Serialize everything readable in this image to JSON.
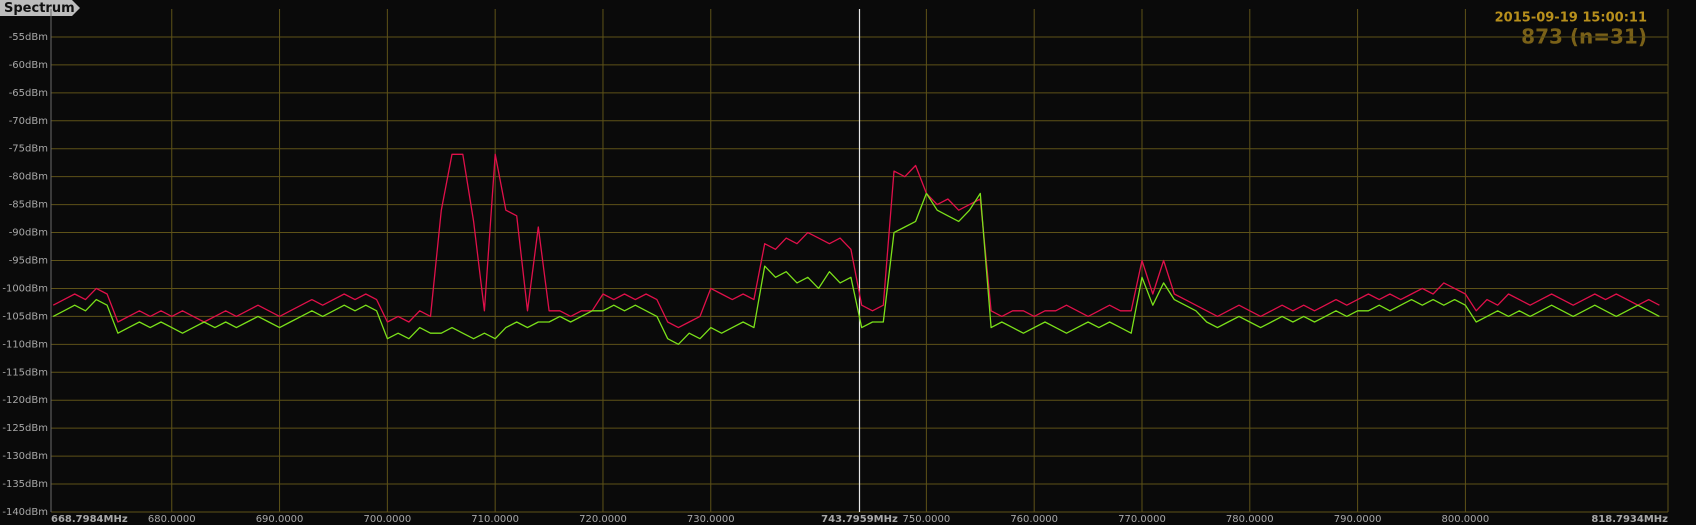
{
  "chart_data": {
    "type": "line",
    "title": "Spectrum",
    "annotations": [
      "2015-09-19 15:00:11",
      "873 (n=31)"
    ],
    "xlim": [
      668.7984,
      818.7934
    ],
    "ylim": [
      -140,
      -50
    ],
    "grid": true,
    "marker": {
      "value": 743.7959,
      "label": "743.7959MHz"
    },
    "xticks": [
      {
        "value": 668.7984,
        "label": "668.7984MHz"
      },
      {
        "value": 680,
        "label": "680.0000"
      },
      {
        "value": 690,
        "label": "690.0000"
      },
      {
        "value": 700,
        "label": "700.0000"
      },
      {
        "value": 710,
        "label": "710.0000"
      },
      {
        "value": 720,
        "label": "720.0000"
      },
      {
        "value": 730,
        "label": "730.0000"
      },
      {
        "value": 750,
        "label": "750.0000"
      },
      {
        "value": 760,
        "label": "760.0000"
      },
      {
        "value": 770,
        "label": "770.0000"
      },
      {
        "value": 780,
        "label": "780.0000"
      },
      {
        "value": 790,
        "label": "790.0000"
      },
      {
        "value": 800,
        "label": "800.0000"
      },
      {
        "value": 818.7934,
        "label": "818.7934MHz"
      }
    ],
    "yticks": [
      {
        "value": -55,
        "label": "-55dBm"
      },
      {
        "value": -60,
        "label": "-60dBm"
      },
      {
        "value": -65,
        "label": "-65dBm"
      },
      {
        "value": -70,
        "label": "-70dBm"
      },
      {
        "value": -75,
        "label": "-75dBm"
      },
      {
        "value": -80,
        "label": "-80dBm"
      },
      {
        "value": -85,
        "label": "-85dBm"
      },
      {
        "value": -90,
        "label": "-90dBm"
      },
      {
        "value": -95,
        "label": "-95dBm"
      },
      {
        "value": -100,
        "label": "-100dBm"
      },
      {
        "value": -105,
        "label": "-105dBm"
      },
      {
        "value": -110,
        "label": "-110dBm"
      },
      {
        "value": -115,
        "label": "-115dBm"
      },
      {
        "value": -120,
        "label": "-120dBm"
      },
      {
        "value": -125,
        "label": "-125dBm"
      },
      {
        "value": -130,
        "label": "-130dBm"
      },
      {
        "value": -135,
        "label": "-135dBm"
      },
      {
        "value": -140,
        "label": "-140dBm"
      }
    ],
    "x": [
      669,
      670,
      671,
      672,
      673,
      674,
      675,
      676,
      677,
      678,
      679,
      680,
      681,
      682,
      683,
      684,
      685,
      686,
      687,
      688,
      689,
      690,
      691,
      692,
      693,
      694,
      695,
      696,
      697,
      698,
      699,
      700,
      701,
      702,
      703,
      704,
      705,
      706,
      707,
      708,
      709,
      710,
      711,
      712,
      713,
      714,
      715,
      716,
      717,
      718,
      719,
      720,
      721,
      722,
      723,
      724,
      725,
      726,
      727,
      728,
      729,
      730,
      731,
      732,
      733,
      734,
      735,
      736,
      737,
      738,
      739,
      740,
      741,
      742,
      743,
      744,
      745,
      746,
      747,
      748,
      749,
      750,
      751,
      752,
      753,
      754,
      755,
      756,
      757,
      758,
      759,
      760,
      761,
      762,
      763,
      764,
      765,
      766,
      767,
      768,
      769,
      770,
      771,
      772,
      773,
      774,
      775,
      776,
      777,
      778,
      779,
      780,
      781,
      782,
      783,
      784,
      785,
      786,
      787,
      788,
      789,
      790,
      791,
      792,
      793,
      794,
      795,
      796,
      797,
      798,
      799,
      800,
      801,
      802,
      803,
      804,
      805,
      806,
      807,
      808,
      809,
      810,
      811,
      812,
      813,
      814,
      815,
      816,
      817,
      818
    ],
    "series": [
      {
        "color": "#e0104a",
        "values": [
          -103,
          -102,
          -101,
          -102,
          -100,
          -101,
          -106,
          -105,
          -104,
          -105,
          -104,
          -105,
          -104,
          -105,
          -106,
          -105,
          -104,
          -105,
          -104,
          -103,
          -104,
          -105,
          -104,
          -103,
          -102,
          -103,
          -102,
          -101,
          -102,
          -101,
          -102,
          -106,
          -105,
          -106,
          -104,
          -105,
          -86,
          -76,
          -76,
          -88,
          -104,
          -76,
          -86,
          -87,
          -104,
          -89,
          -104,
          -104,
          -105,
          -104,
          -104,
          -101,
          -102,
          -101,
          -102,
          -101,
          -102,
          -106,
          -107,
          -106,
          -105,
          -100,
          -101,
          -102,
          -101,
          -102,
          -92,
          -93,
          -91,
          -92,
          -90,
          -91,
          -92,
          -91,
          -93,
          -103,
          -104,
          -103,
          -79,
          -80,
          -78,
          -83,
          -85,
          -84,
          -86,
          -85,
          -84,
          -104,
          -105,
          -104,
          -104,
          -105,
          -104,
          -104,
          -103,
          -104,
          -105,
          -104,
          -103,
          -104,
          -104,
          -95,
          -101,
          -95,
          -101,
          -102,
          -103,
          -104,
          -105,
          -104,
          -103,
          -104,
          -105,
          -104,
          -103,
          -104,
          -103,
          -104,
          -103,
          -102,
          -103,
          -102,
          -101,
          -102,
          -101,
          -102,
          -101,
          -100,
          -101,
          -99,
          -100,
          -101,
          -104,
          -102,
          -103,
          -101,
          -102,
          -103,
          -102,
          -101,
          -102,
          -103,
          -102,
          -101,
          -102,
          -101,
          -102,
          -103,
          -102,
          -103
        ]
      },
      {
        "color": "#7be01a",
        "values": [
          -105,
          -104,
          -103,
          -104,
          -102,
          -103,
          -108,
          -107,
          -106,
          -107,
          -106,
          -107,
          -108,
          -107,
          -106,
          -107,
          -106,
          -107,
          -106,
          -105,
          -106,
          -107,
          -106,
          -105,
          -104,
          -105,
          -104,
          -103,
          -104,
          -103,
          -104,
          -109,
          -108,
          -109,
          -107,
          -108,
          -108,
          -107,
          -108,
          -109,
          -108,
          -109,
          -107,
          -106,
          -107,
          -106,
          -106,
          -105,
          -106,
          -105,
          -104,
          -104,
          -103,
          -104,
          -103,
          -104,
          -105,
          -109,
          -110,
          -108,
          -109,
          -107,
          -108,
          -107,
          -106,
          -107,
          -96,
          -98,
          -97,
          -99,
          -98,
          -100,
          -97,
          -99,
          -98,
          -107,
          -106,
          -106,
          -90,
          -89,
          -88,
          -83,
          -86,
          -87,
          -88,
          -86,
          -83,
          -107,
          -106,
          -107,
          -108,
          -107,
          -106,
          -107,
          -108,
          -107,
          -106,
          -107,
          -106,
          -107,
          -108,
          -98,
          -103,
          -99,
          -102,
          -103,
          -104,
          -106,
          -107,
          -106,
          -105,
          -106,
          -107,
          -106,
          -105,
          -106,
          -105,
          -106,
          -105,
          -104,
          -105,
          -104,
          -104,
          -103,
          -104,
          -103,
          -102,
          -103,
          -102,
          -103,
          -102,
          -103,
          -106,
          -105,
          -104,
          -105,
          -104,
          -105,
          -104,
          -103,
          -104,
          -105,
          -104,
          -103,
          -104,
          -105,
          -104,
          -103,
          -104,
          -105
        ]
      }
    ]
  }
}
